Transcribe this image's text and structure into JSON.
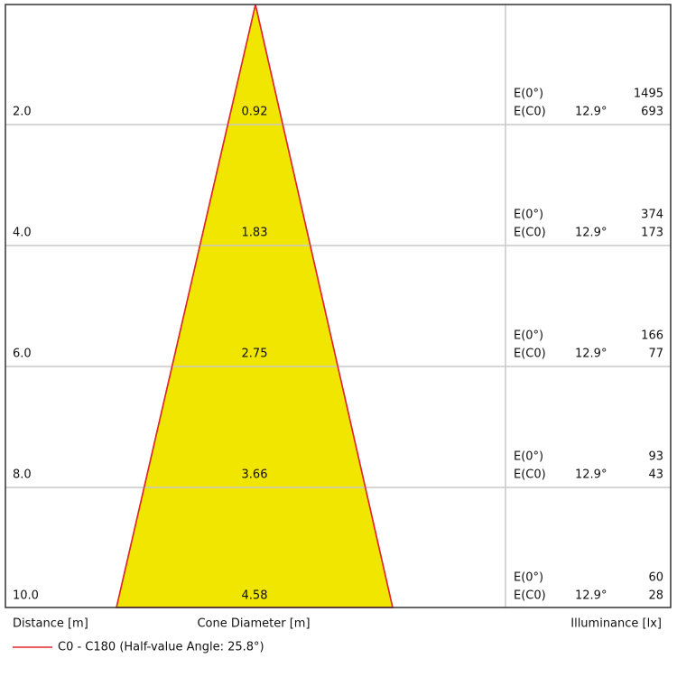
{
  "rows": [
    {
      "distance": "2.0",
      "diameter": "0.92",
      "e0": "1495",
      "ec0": "693",
      "angle": "12.9°"
    },
    {
      "distance": "4.0",
      "diameter": "1.83",
      "e0": "374",
      "ec0": "173",
      "angle": "12.9°"
    },
    {
      "distance": "6.0",
      "diameter": "2.75",
      "e0": "166",
      "ec0": "77",
      "angle": "12.9°"
    },
    {
      "distance": "8.0",
      "diameter": "3.66",
      "e0": "93",
      "ec0": "43",
      "angle": "12.9°"
    },
    {
      "distance": "10.0",
      "diameter": "4.58",
      "e0": "60",
      "ec0": "28",
      "angle": "12.9°"
    }
  ],
  "labels": {
    "e0": "E(0°)",
    "ec0": "E(C0)"
  },
  "footer": {
    "distance": "Distance [m]",
    "diameter": "Cone Diameter [m]",
    "illuminance": "Illuminance [lx]"
  },
  "legend": "C0 - C180 (Half-value Angle: 25.8°)"
}
